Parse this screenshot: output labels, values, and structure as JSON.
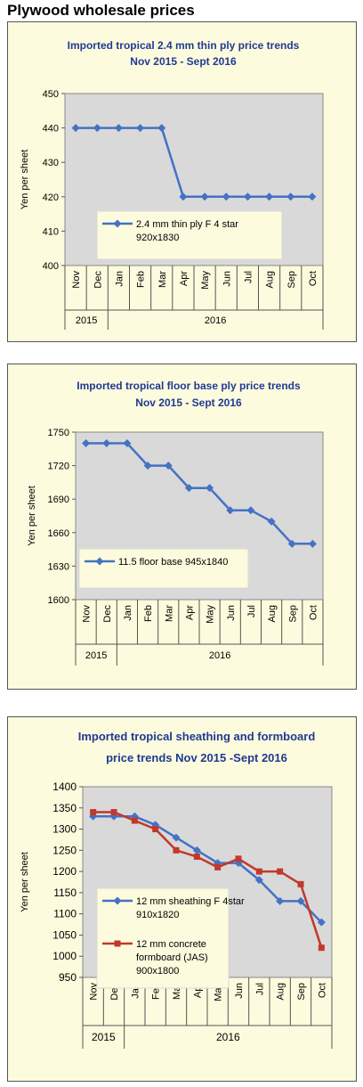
{
  "page_title": "Plywood wholesale prices",
  "chart_data": [
    {
      "type": "line",
      "title_lines": [
        "Imported tropical 2.4 mm thin ply price trends",
        "Nov 2015 - Sept 2016"
      ],
      "ylabel": "Yen per sheet",
      "ylim": [
        400,
        450
      ],
      "yticks": [
        "400",
        "410",
        "420",
        "430",
        "440",
        "450"
      ],
      "categories": [
        "Nov",
        "Dec",
        "Jan",
        "Feb",
        "Mar",
        "Apr",
        "May",
        "Jun",
        "Jul",
        "Aug",
        "Sep",
        "Oct"
      ],
      "years": [
        {
          "label": "2015",
          "count": 2
        },
        {
          "label": "2016",
          "count": 10
        }
      ],
      "grid": false,
      "series": [
        {
          "name_lines": [
            "2.4 mm thin ply F 4 star",
            "920x1830"
          ],
          "color": "#4472c4",
          "marker": "diamond",
          "values": [
            440,
            440,
            440,
            440,
            440,
            420,
            420,
            420,
            420,
            420,
            420,
            420
          ]
        }
      ]
    },
    {
      "type": "line",
      "title_lines": [
        "Imported tropical floor base ply price trends",
        "Nov 2015 - Sept 2016"
      ],
      "ylabel": "Yen per sheet",
      "ylim": [
        1600,
        1750
      ],
      "yticks": [
        "1600",
        "1630",
        "1660",
        "1690",
        "1720",
        "1750"
      ],
      "categories": [
        "Nov",
        "Dec",
        "Jan",
        "Feb",
        "Mar",
        "Apr",
        "May",
        "Jun",
        "Jul",
        "Aug",
        "Sep",
        "Oct"
      ],
      "years": [
        {
          "label": "2015",
          "count": 2
        },
        {
          "label": "2016",
          "count": 10
        }
      ],
      "grid": false,
      "series": [
        {
          "name_lines": [
            "11.5 floor base 945x1840"
          ],
          "color": "#4472c4",
          "marker": "diamond",
          "values": [
            1740,
            1740,
            1740,
            1720,
            1720,
            1700,
            1700,
            1680,
            1680,
            1670,
            1650,
            1650
          ]
        }
      ]
    },
    {
      "type": "line",
      "title_lines": [
        "Imported tropical sheathing and formboard",
        "price trends Nov 2015 -Sept 2016"
      ],
      "ylabel": "Yen per sheet",
      "ylim": [
        950,
        1400
      ],
      "yticks": [
        "950",
        "1000",
        "1050",
        "1100",
        "1150",
        "1200",
        "1250",
        "1300",
        "1350",
        "1400"
      ],
      "categories": [
        "Nov",
        "Dec",
        "Jan",
        "Feb",
        "Mar",
        "Apr",
        "May",
        "Jun",
        "Jul",
        "Aug",
        "Sep",
        "Oct"
      ],
      "years": [
        {
          "label": "2015",
          "count": 2
        },
        {
          "label": "2016",
          "count": 10
        }
      ],
      "grid": false,
      "series": [
        {
          "name_lines": [
            "12 mm sheathing F 4star",
            "910x1820"
          ],
          "color": "#4472c4",
          "marker": "diamond",
          "values": [
            1330,
            1330,
            1330,
            1310,
            1280,
            1250,
            1220,
            1220,
            1180,
            1130,
            1130,
            1080
          ]
        },
        {
          "name_lines": [
            "12 mm concrete",
            "formboard (JAS)",
            "900x1800"
          ],
          "color": "#c0392b",
          "marker": "square",
          "values": [
            1340,
            1340,
            1320,
            1300,
            1250,
            1235,
            1210,
            1230,
            1200,
            1200,
            1170,
            1020
          ]
        }
      ]
    }
  ]
}
